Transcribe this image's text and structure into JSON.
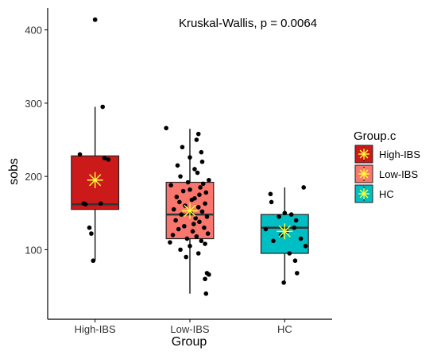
{
  "chart_data": {
    "type": "boxplot",
    "annotation": "Kruskal-Wallis, p = 0.0064",
    "xlabel": "Group",
    "ylabel": "sobs",
    "ylim": [
      5,
      430
    ],
    "yticks": [
      100,
      200,
      300,
      400
    ],
    "categories": [
      "High-IBS",
      "Low-IBS",
      "HC"
    ],
    "legend": {
      "title": "Group.c",
      "placement": "right",
      "items": [
        "High-IBS",
        "Low-IBS",
        "HC"
      ]
    },
    "mean_marker_color": "#ffff33",
    "groups": [
      {
        "name": "High-IBS",
        "color": "#cc1a1a",
        "min": 85,
        "q1": 155,
        "median": 162,
        "q3": 228,
        "max": 295,
        "mean": 195,
        "outliers": [
          414
        ],
        "points": [
          [
            0.0,
            414
          ],
          [
            0.08,
            295
          ],
          [
            -0.16,
            230
          ],
          [
            0.1,
            225
          ],
          [
            0.14,
            223
          ],
          [
            -0.1,
            162
          ],
          [
            0.06,
            163
          ],
          [
            -0.12,
            163
          ],
          [
            -0.06,
            130
          ],
          [
            -0.04,
            122
          ],
          [
            -0.02,
            85
          ]
        ]
      },
      {
        "name": "Low-IBS",
        "color": "#f8766d",
        "min": 40,
        "q1": 115,
        "median": 148,
        "q3": 192,
        "max": 265,
        "mean": 153,
        "outliers": [],
        "points": [
          [
            -0.25,
            266
          ],
          [
            0.09,
            258
          ],
          [
            0.07,
            250
          ],
          [
            -0.08,
            240
          ],
          [
            0.12,
            233
          ],
          [
            0.0,
            226
          ],
          [
            0.13,
            220
          ],
          [
            -0.13,
            215
          ],
          [
            0.05,
            210
          ],
          [
            0.08,
            205
          ],
          [
            -0.1,
            200
          ],
          [
            0.2,
            195
          ],
          [
            -0.02,
            192
          ],
          [
            0.14,
            190
          ],
          [
            -0.2,
            188
          ],
          [
            0.11,
            185
          ],
          [
            0.0,
            182
          ],
          [
            -0.07,
            180
          ],
          [
            0.17,
            178
          ],
          [
            0.1,
            175
          ],
          [
            -0.14,
            172
          ],
          [
            0.05,
            170
          ],
          [
            0.02,
            168
          ],
          [
            -0.11,
            165
          ],
          [
            0.16,
            163
          ],
          [
            -0.05,
            160
          ],
          [
            0.09,
            158
          ],
          [
            -0.17,
            155
          ],
          [
            0.13,
            152
          ],
          [
            0.01,
            150
          ],
          [
            -0.09,
            148
          ],
          [
            0.18,
            145
          ],
          [
            0.06,
            143
          ],
          [
            -0.15,
            140
          ],
          [
            0.1,
            138
          ],
          [
            0.04,
            135
          ],
          [
            -0.06,
            132
          ],
          [
            0.15,
            130
          ],
          [
            -0.12,
            128
          ],
          [
            0.03,
            125
          ],
          [
            0.19,
            122
          ],
          [
            -0.18,
            120
          ],
          [
            0.07,
            118
          ],
          [
            -0.03,
            115
          ],
          [
            0.12,
            112
          ],
          [
            -0.21,
            110
          ],
          [
            0.16,
            108
          ],
          [
            0.0,
            105
          ],
          [
            -0.1,
            100
          ],
          [
            0.09,
            95
          ],
          [
            -0.04,
            90
          ],
          [
            0.18,
            68
          ],
          [
            0.2,
            66
          ],
          [
            0.16,
            60
          ],
          [
            0.17,
            40
          ]
        ]
      },
      {
        "name": "HC",
        "color": "#00bfc4",
        "min": 55,
        "q1": 95,
        "median": 130,
        "q3": 148,
        "max": 185,
        "mean": 125,
        "outliers": [],
        "points": [
          [
            0.2,
            185
          ],
          [
            -0.15,
            176
          ],
          [
            -0.14,
            165
          ],
          [
            0.0,
            150
          ],
          [
            0.07,
            148
          ],
          [
            -0.06,
            145
          ],
          [
            0.12,
            140
          ],
          [
            0.1,
            130
          ],
          [
            -0.2,
            128
          ],
          [
            0.02,
            125
          ],
          [
            -0.04,
            120
          ],
          [
            0.17,
            115
          ],
          [
            -0.12,
            112
          ],
          [
            0.22,
            105
          ],
          [
            0.05,
            95
          ],
          [
            0.11,
            85
          ],
          [
            0.13,
            68
          ],
          [
            -0.01,
            55
          ]
        ]
      }
    ]
  }
}
